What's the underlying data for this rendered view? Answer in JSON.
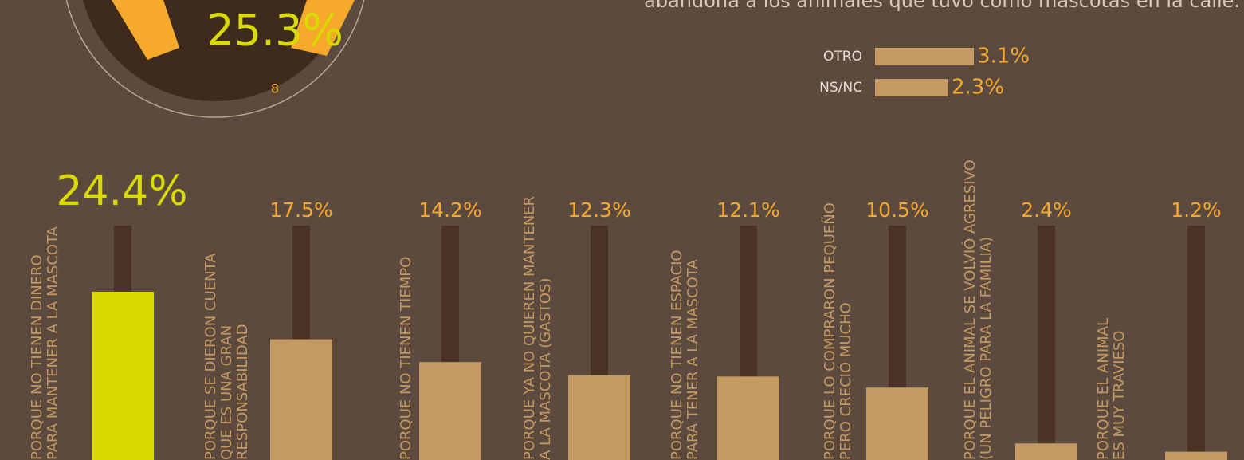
{
  "caption": "abandona a los animales que tuvo como mascotas en la calle.",
  "circle": {
    "label": "25.3%",
    "note": "8"
  },
  "chart_data": [
    {
      "type": "bar",
      "categories": [
        "PORQUE NO TIENEN DINERO\nPARA MANTENER A LA MASCOTA",
        "PORQUE SE DIERON CUENTA\nQUE ES UNA GRAN\nRESPONSABILIDAD",
        "PORQUE NO TIENEN TIEMPO",
        "PORQUE YA NO QUIEREN MANTENER\nA LA MASCOTA (GASTOS)",
        "PORQUE NO TIENEN ESPACIO\nPARA TENER A LA MASCOTA",
        "PORQUE LO COMPRARON PEQUEÑO\nPERO CRECIÓ MUCHO",
        "PORQUE EL ANIMAL SE VOLVIÓ AGRESIVO\n(UN PELIGRO PARA LA FAMILIA)",
        "PORQUE EL ANIMAL\nES MUY TRAVIESO"
      ],
      "values": [
        24.4,
        17.5,
        14.2,
        12.3,
        12.1,
        10.5,
        2.4,
        1.2
      ],
      "value_labels": [
        "24.4%",
        "17.5%",
        "14.2%",
        "12.3%",
        "12.1%",
        "10.5%",
        "2.4%",
        "1.2%"
      ],
      "colors": [
        "#d8da00",
        "#c49a63",
        "#c49a63",
        "#c49a63",
        "#c49a63",
        "#c49a63",
        "#c49a63",
        "#c49a63"
      ]
    },
    {
      "type": "barh",
      "categories": [
        "OTRO",
        "NS/NC"
      ],
      "values": [
        3.1,
        2.3
      ],
      "value_labels": [
        "3.1%",
        "2.3%"
      ],
      "color": "#c49a63"
    }
  ]
}
